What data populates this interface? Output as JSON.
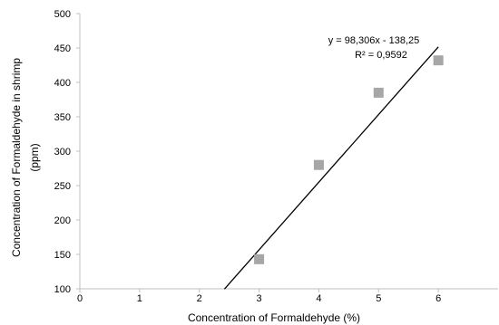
{
  "chart_data": {
    "type": "scatter",
    "title": "",
    "xlabel": "Concentration of Formaldehyde (%)",
    "ylabel_lines": [
      "Concentration of Formaldehyde in shrimp",
      "(ppm)"
    ],
    "xlim": [
      0,
      7
    ],
    "ylim": [
      100,
      500
    ],
    "x_ticks": [
      0,
      1,
      2,
      3,
      4,
      5,
      6
    ],
    "y_ticks": [
      100,
      150,
      200,
      250,
      300,
      350,
      400,
      450,
      500
    ],
    "grid": false,
    "legend": "none",
    "series": [
      {
        "x": [
          3,
          4,
          5,
          6
        ],
        "y": [
          143,
          280,
          385,
          432
        ],
        "marker": "square",
        "color": "#a6a6a6"
      }
    ],
    "trendline": {
      "type": "linear",
      "slope": 98.306,
      "intercept": -138.25,
      "x_range": [
        2.42,
        6.0
      ],
      "color": "#000000",
      "equation_text": "y = 98,306x - 138,25",
      "r2_text": "R² = 0,9592"
    }
  }
}
